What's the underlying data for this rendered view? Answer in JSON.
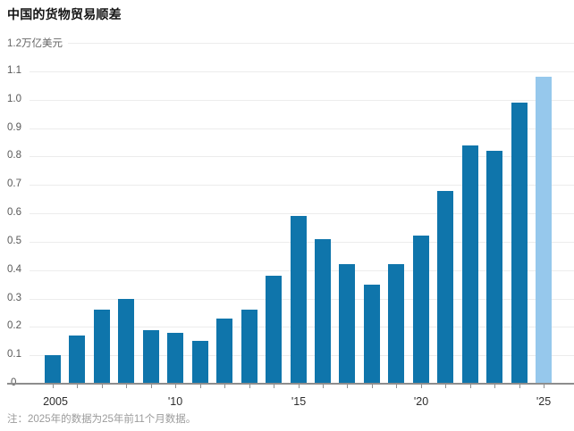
{
  "header": {
    "title": "中国的货物贸易顺差"
  },
  "footnote": "注：2025年的数据为25年前11个月数据。",
  "chart_data": {
    "type": "bar",
    "title": "中国的货物贸易顺差",
    "unit_label_top": "1.2万亿美元",
    "xlabel": "",
    "ylabel": "万亿美元",
    "ylim": [
      0,
      1.2
    ],
    "grid": "horizontal",
    "legend_position": "none",
    "categories": [
      2005,
      2006,
      2007,
      2008,
      2009,
      2010,
      2011,
      2012,
      2013,
      2014,
      2015,
      2016,
      2017,
      2018,
      2019,
      2020,
      2021,
      2022,
      2023,
      2024,
      2025
    ],
    "values": [
      0.1,
      0.17,
      0.26,
      0.3,
      0.19,
      0.18,
      0.15,
      0.23,
      0.26,
      0.38,
      0.59,
      0.51,
      0.42,
      0.35,
      0.42,
      0.52,
      0.68,
      0.84,
      0.82,
      0.99,
      1.08
    ],
    "highlight_index": 20,
    "highlight_note": "2025年为前11个月数据",
    "colors": {
      "bar": "#0f75ab",
      "highlight_bar": "#96c8ec",
      "gridline": "#ececec",
      "axis": "#8d8d8d",
      "title_text": "#141414",
      "tick_text": "#595959",
      "x_tick_text": "#2e2e2e",
      "footnote_text": "#9b9b9b"
    },
    "y_tick_labels": [
      "1.1",
      "1.0",
      "0.9",
      "0.8",
      "0.7",
      "0.6",
      "0.5",
      "0.4",
      "0.3",
      "0.2",
      "0.1",
      "0"
    ],
    "y_tick_values": [
      1.1,
      1.0,
      0.9,
      0.8,
      0.7,
      0.6,
      0.5,
      0.4,
      0.3,
      0.2,
      0.1,
      0
    ],
    "x_tick_labels": [
      "2005",
      "'10",
      "'15",
      "'20",
      "'25"
    ],
    "x_tick_years": [
      2005,
      2010,
      2015,
      2020,
      2025
    ]
  }
}
